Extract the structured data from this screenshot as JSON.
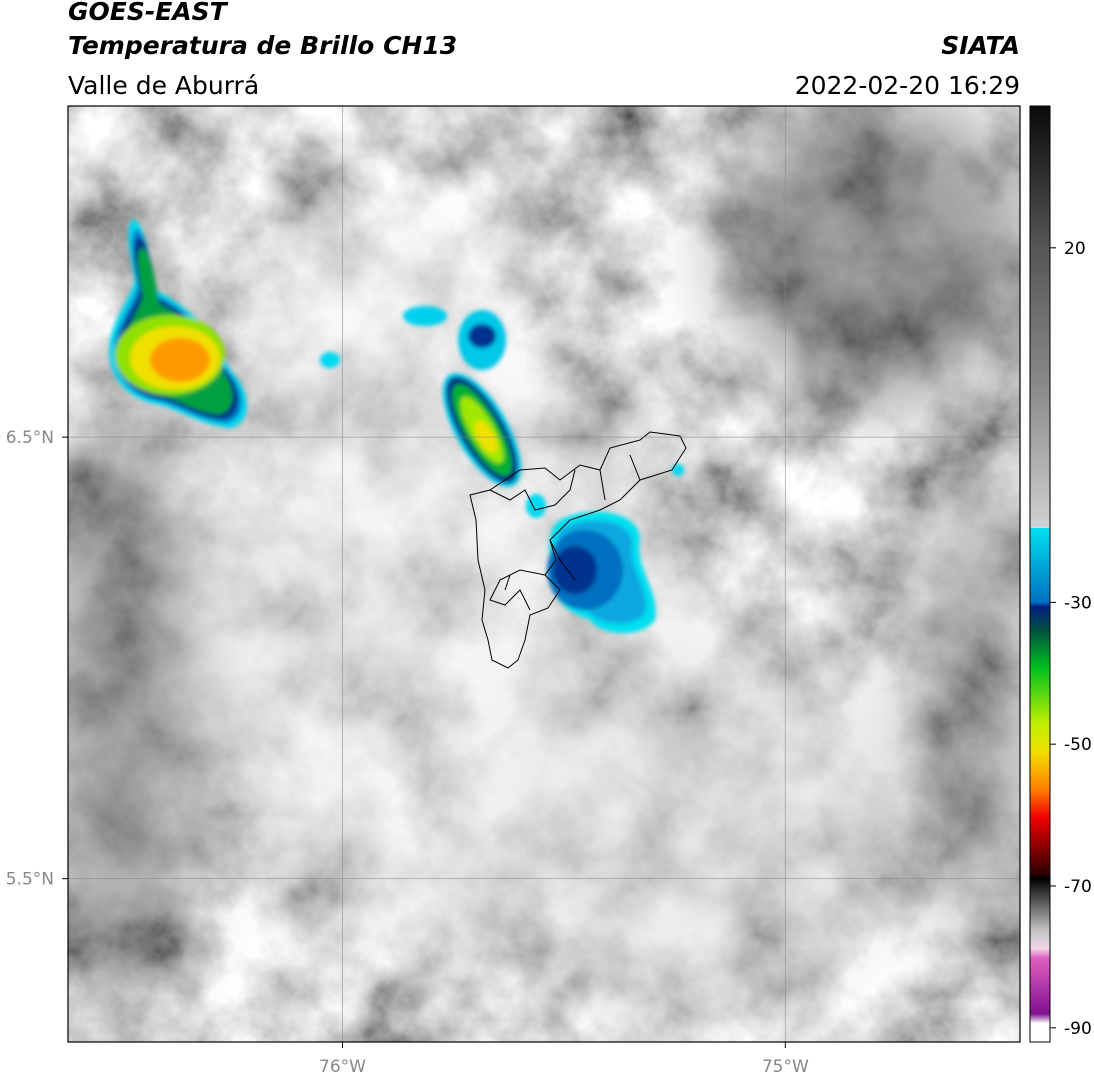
{
  "header": {
    "title": "GOES-EAST",
    "subtitle": "Temperatura de Brillo CH13",
    "region": "Valle de Aburrá",
    "source": "SIATA",
    "timestamp": "2022-02-20 16:29"
  },
  "map": {
    "xlim": [
      -76.62,
      -74.47
    ],
    "ylim": [
      5.13,
      7.25
    ],
    "xticks": [
      {
        "value": -76,
        "label": "76°W"
      },
      {
        "value": -75,
        "label": "75°W"
      }
    ],
    "yticks": [
      {
        "value": 6.5,
        "label": "6.5°N"
      },
      {
        "value": 5.5,
        "label": "5.5°N"
      }
    ],
    "grid": true
  },
  "colorbar": {
    "lim": [
      -92,
      40
    ],
    "ticks": [
      20,
      -30,
      -50,
      -70,
      -90
    ]
  }
}
